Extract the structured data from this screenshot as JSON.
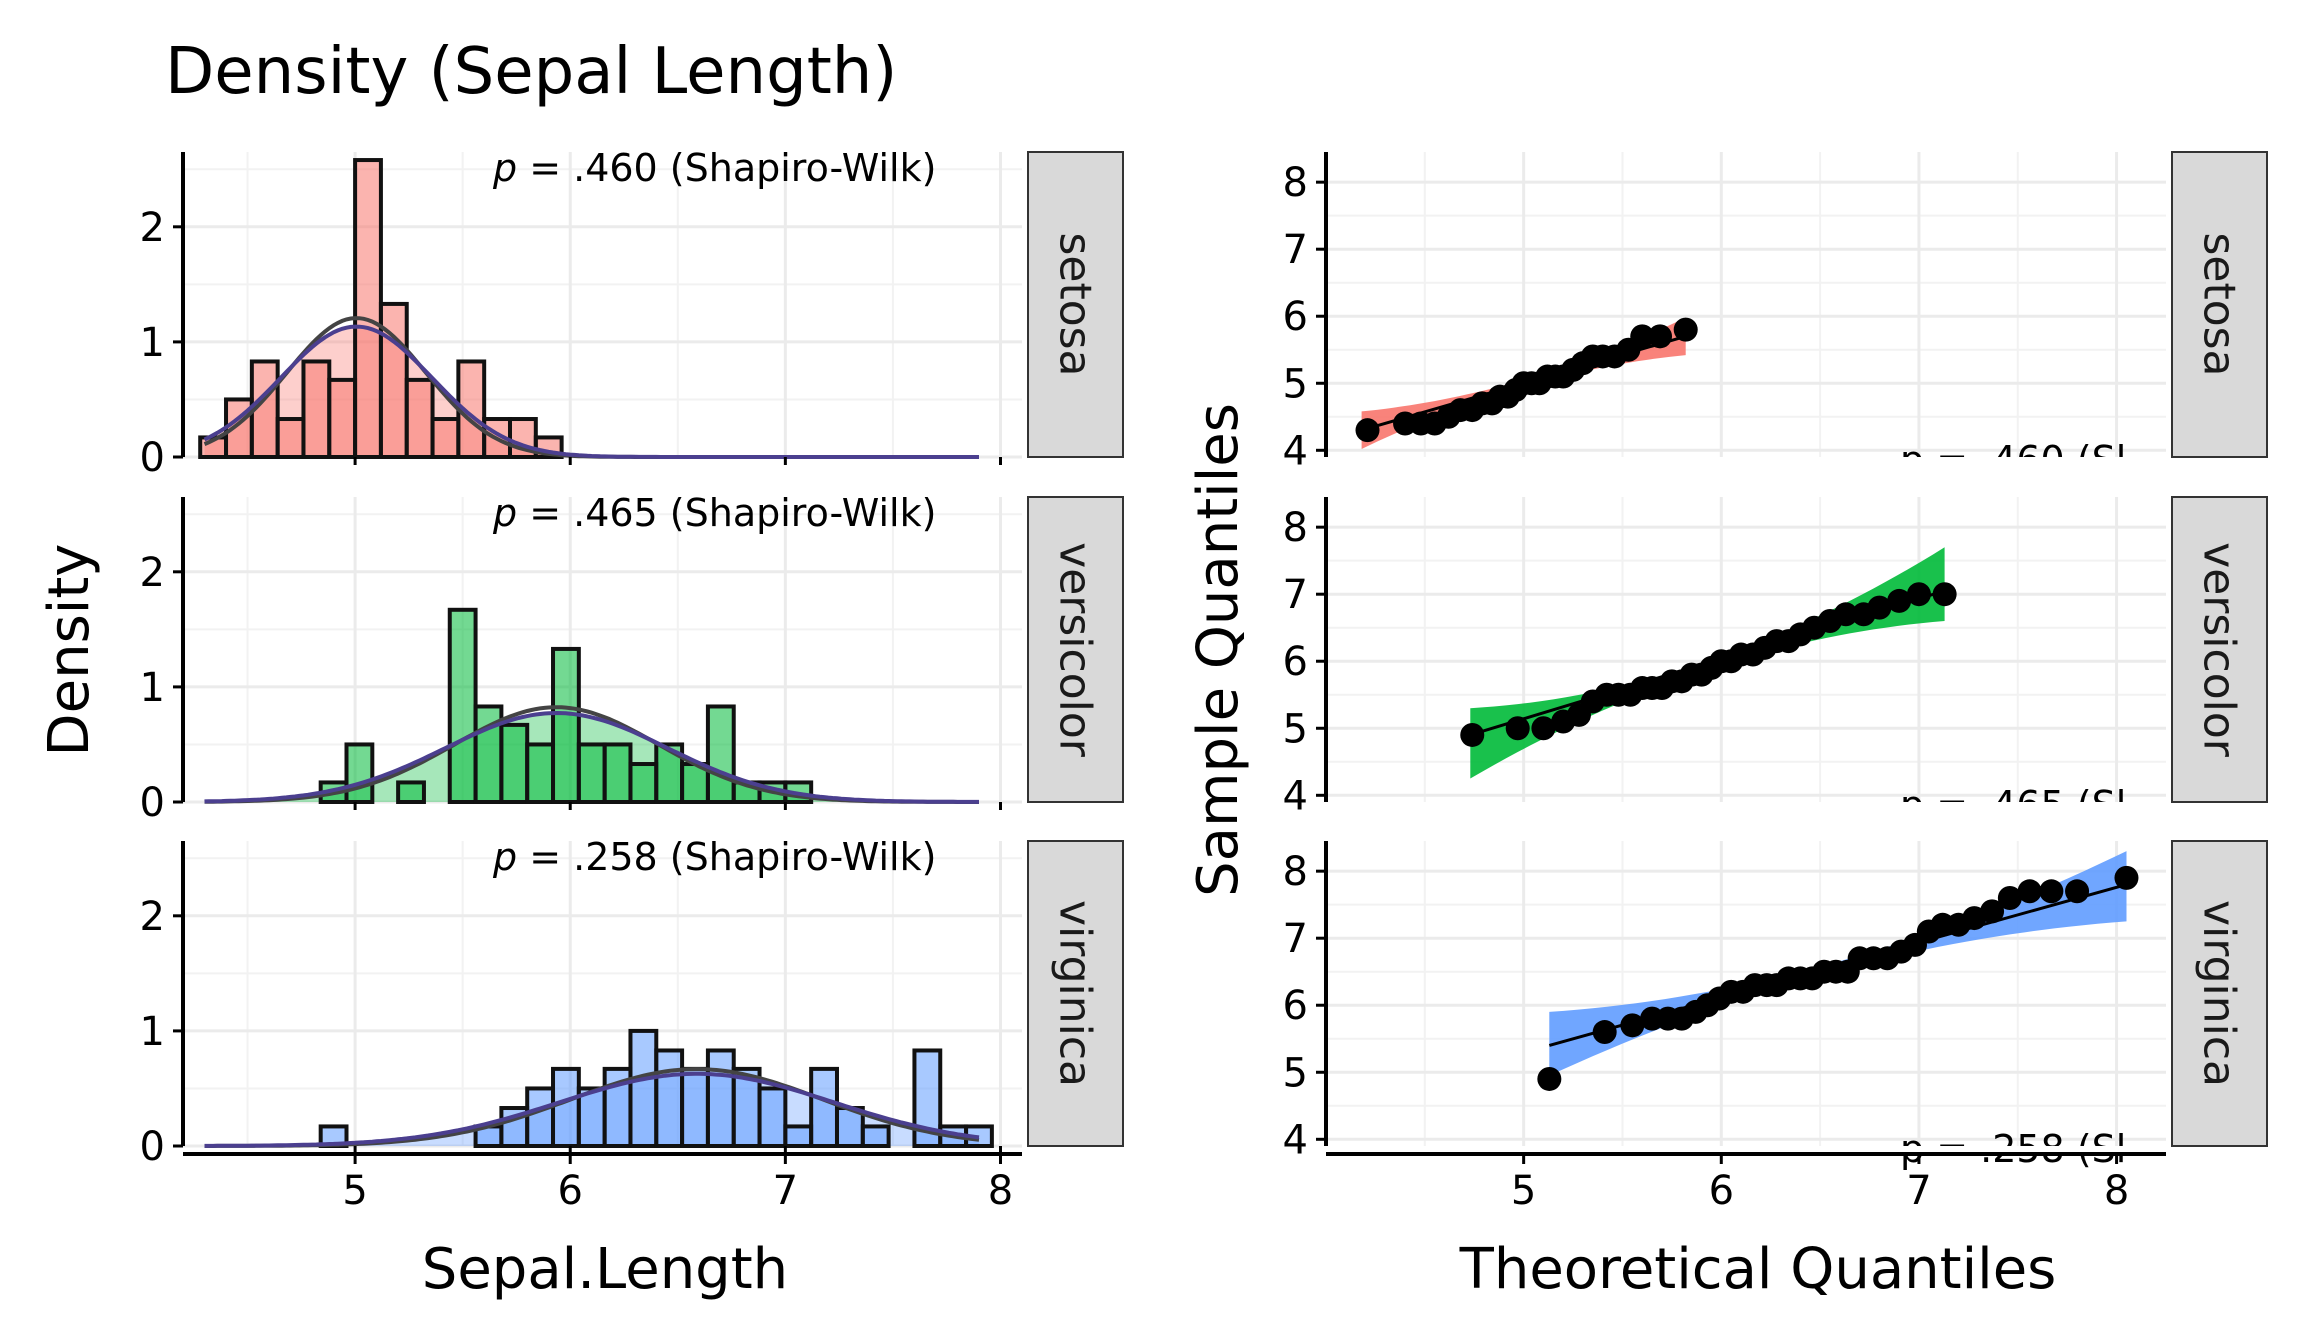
{
  "title": "Density (Sepal Length)",
  "chart_data": [
    {
      "type": "histogram",
      "title": "Density (Sepal Length)",
      "xlabel": "Sepal.Length",
      "ylabel": "Density",
      "xlim": [
        4.2,
        8.1
      ],
      "ylim": [
        0,
        2.65
      ],
      "x_ticks": [
        5,
        6,
        7,
        8
      ],
      "y_ticks": [
        0,
        1,
        2
      ],
      "bin_width": 0.12,
      "overlay": [
        "empirical density",
        "normal density"
      ],
      "facets": [
        {
          "label": "setosa",
          "color": "#F8766D",
          "annotation": ".460 (Shapiro-Wilk)",
          "mean": 5.006,
          "sd": 0.352,
          "bin_starts": [
            4.28,
            4.4,
            4.52,
            4.64,
            4.76,
            4.88,
            5.0,
            5.12,
            5.24,
            5.36,
            5.48,
            5.6,
            5.72,
            5.84
          ],
          "density": [
            0.17,
            0.5,
            0.83,
            0.33,
            0.83,
            0.67,
            2.58,
            1.33,
            0.67,
            0.33,
            0.83,
            0.33,
            0.33,
            0.17
          ]
        },
        {
          "label": "versicolor",
          "color": "#00BA38",
          "annotation": ".465 (Shapiro-Wilk)",
          "mean": 5.936,
          "sd": 0.516,
          "bin_starts": [
            4.84,
            4.96,
            5.2,
            5.44,
            5.56,
            5.68,
            5.8,
            5.92,
            6.04,
            6.16,
            6.28,
            6.4,
            6.52,
            6.64,
            6.76,
            6.88,
            7.0
          ],
          "density": [
            0.17,
            0.5,
            0.17,
            1.67,
            0.83,
            0.67,
            0.5,
            1.33,
            0.5,
            0.5,
            0.33,
            0.5,
            0.33,
            0.83,
            0.17,
            0.17,
            0.17
          ]
        },
        {
          "label": "virginica",
          "color": "#619CFF",
          "annotation": ".258 (Shapiro-Wilk)",
          "mean": 6.588,
          "sd": 0.636,
          "bin_starts": [
            4.84,
            5.56,
            5.68,
            5.8,
            5.92,
            6.04,
            6.16,
            6.28,
            6.4,
            6.52,
            6.64,
            6.76,
            6.88,
            7.0,
            7.12,
            7.24,
            7.36,
            7.6,
            7.72,
            7.84
          ],
          "density": [
            0.17,
            0.17,
            0.33,
            0.5,
            0.67,
            0.5,
            0.67,
            1.0,
            0.83,
            0.67,
            0.83,
            0.67,
            0.5,
            0.17,
            0.67,
            0.33,
            0.17,
            0.83,
            0.17,
            0.17
          ]
        }
      ]
    },
    {
      "type": "scatter",
      "xlabel": "Theoretical Quantiles",
      "ylabel": "Sample Quantiles",
      "xlim": [
        4.0,
        8.25
      ],
      "ylim": [
        3.9,
        8.45
      ],
      "x_ticks": [
        5,
        6,
        7,
        8
      ],
      "y_ticks": [
        4,
        5,
        6,
        7,
        8
      ],
      "facets": [
        {
          "label": "setosa",
          "color": "#F8766D",
          "annotation": "p = .460 (Sl",
          "line": [
            [
              4.18,
              4.3
            ],
            [
              5.82,
              5.7
            ]
          ],
          "band": {
            "x": [
              4.18,
              5.0,
              5.82
            ],
            "lower": [
              4.02,
              4.95,
              5.42
            ],
            "upper": [
              4.58,
              5.05,
              5.98
            ]
          },
          "x": [
            4.21,
            4.4,
            4.48,
            4.55,
            4.62,
            4.68,
            4.74,
            4.79,
            4.84,
            4.88,
            4.92,
            4.96,
            5.0,
            5.04,
            5.08,
            5.12,
            5.16,
            5.2,
            5.25,
            5.3,
            5.35,
            5.4,
            5.46,
            5.53,
            5.6,
            5.69,
            5.82
          ],
          "y": [
            4.3,
            4.4,
            4.4,
            4.4,
            4.5,
            4.6,
            4.6,
            4.7,
            4.7,
            4.8,
            4.8,
            4.9,
            5.0,
            5.0,
            5.0,
            5.1,
            5.1,
            5.1,
            5.2,
            5.3,
            5.4,
            5.4,
            5.4,
            5.5,
            5.7,
            5.7,
            5.8
          ]
        },
        {
          "label": "versicolor",
          "color": "#00BA38",
          "annotation": "p = .465 (Sl",
          "line": [
            [
              4.73,
              4.9
            ],
            [
              7.13,
              7.05
            ]
          ],
          "band": {
            "x": [
              4.73,
              5.93,
              7.13
            ],
            "lower": [
              4.25,
              5.87,
              6.6
            ],
            "upper": [
              5.3,
              6.0,
              7.7
            ]
          },
          "x": [
            4.74,
            4.97,
            5.1,
            5.2,
            5.28,
            5.35,
            5.42,
            5.48,
            5.54,
            5.6,
            5.65,
            5.7,
            5.75,
            5.8,
            5.85,
            5.9,
            5.95,
            6.0,
            6.05,
            6.1,
            6.16,
            6.22,
            6.28,
            6.34,
            6.4,
            6.47,
            6.55,
            6.63,
            6.72,
            6.8,
            6.9,
            7.0,
            7.13
          ],
          "y": [
            4.9,
            5.0,
            5.0,
            5.1,
            5.2,
            5.4,
            5.5,
            5.5,
            5.5,
            5.6,
            5.6,
            5.6,
            5.7,
            5.7,
            5.8,
            5.8,
            5.9,
            6.0,
            6.0,
            6.1,
            6.1,
            6.2,
            6.3,
            6.3,
            6.4,
            6.5,
            6.6,
            6.7,
            6.7,
            6.8,
            6.9,
            7.0,
            7.0
          ]
        },
        {
          "label": "virginica",
          "color": "#619CFF",
          "annotation": "p = .258 (Sl",
          "line": [
            [
              5.13,
              5.4
            ],
            [
              8.05,
              7.8
            ]
          ],
          "band": {
            "x": [
              5.13,
              6.59,
              8.05
            ],
            "lower": [
              4.95,
              6.52,
              7.25
            ],
            "upper": [
              5.9,
              6.65,
              8.3
            ]
          },
          "x": [
            5.13,
            5.41,
            5.55,
            5.65,
            5.73,
            5.8,
            5.87,
            5.93,
            5.99,
            6.05,
            6.11,
            6.17,
            6.23,
            6.28,
            6.34,
            6.4,
            6.46,
            6.52,
            6.58,
            6.64,
            6.7,
            6.77,
            6.84,
            6.91,
            6.98,
            7.05,
            7.12,
            7.2,
            7.28,
            7.37,
            7.46,
            7.56,
            7.67,
            7.8,
            8.05
          ],
          "y": [
            4.9,
            5.6,
            5.7,
            5.8,
            5.8,
            5.8,
            5.9,
            6.0,
            6.1,
            6.2,
            6.2,
            6.3,
            6.3,
            6.3,
            6.4,
            6.4,
            6.4,
            6.5,
            6.5,
            6.5,
            6.7,
            6.7,
            6.7,
            6.8,
            6.9,
            7.1,
            7.2,
            7.2,
            7.3,
            7.4,
            7.6,
            7.7,
            7.7,
            7.7,
            7.9
          ]
        }
      ]
    }
  ]
}
